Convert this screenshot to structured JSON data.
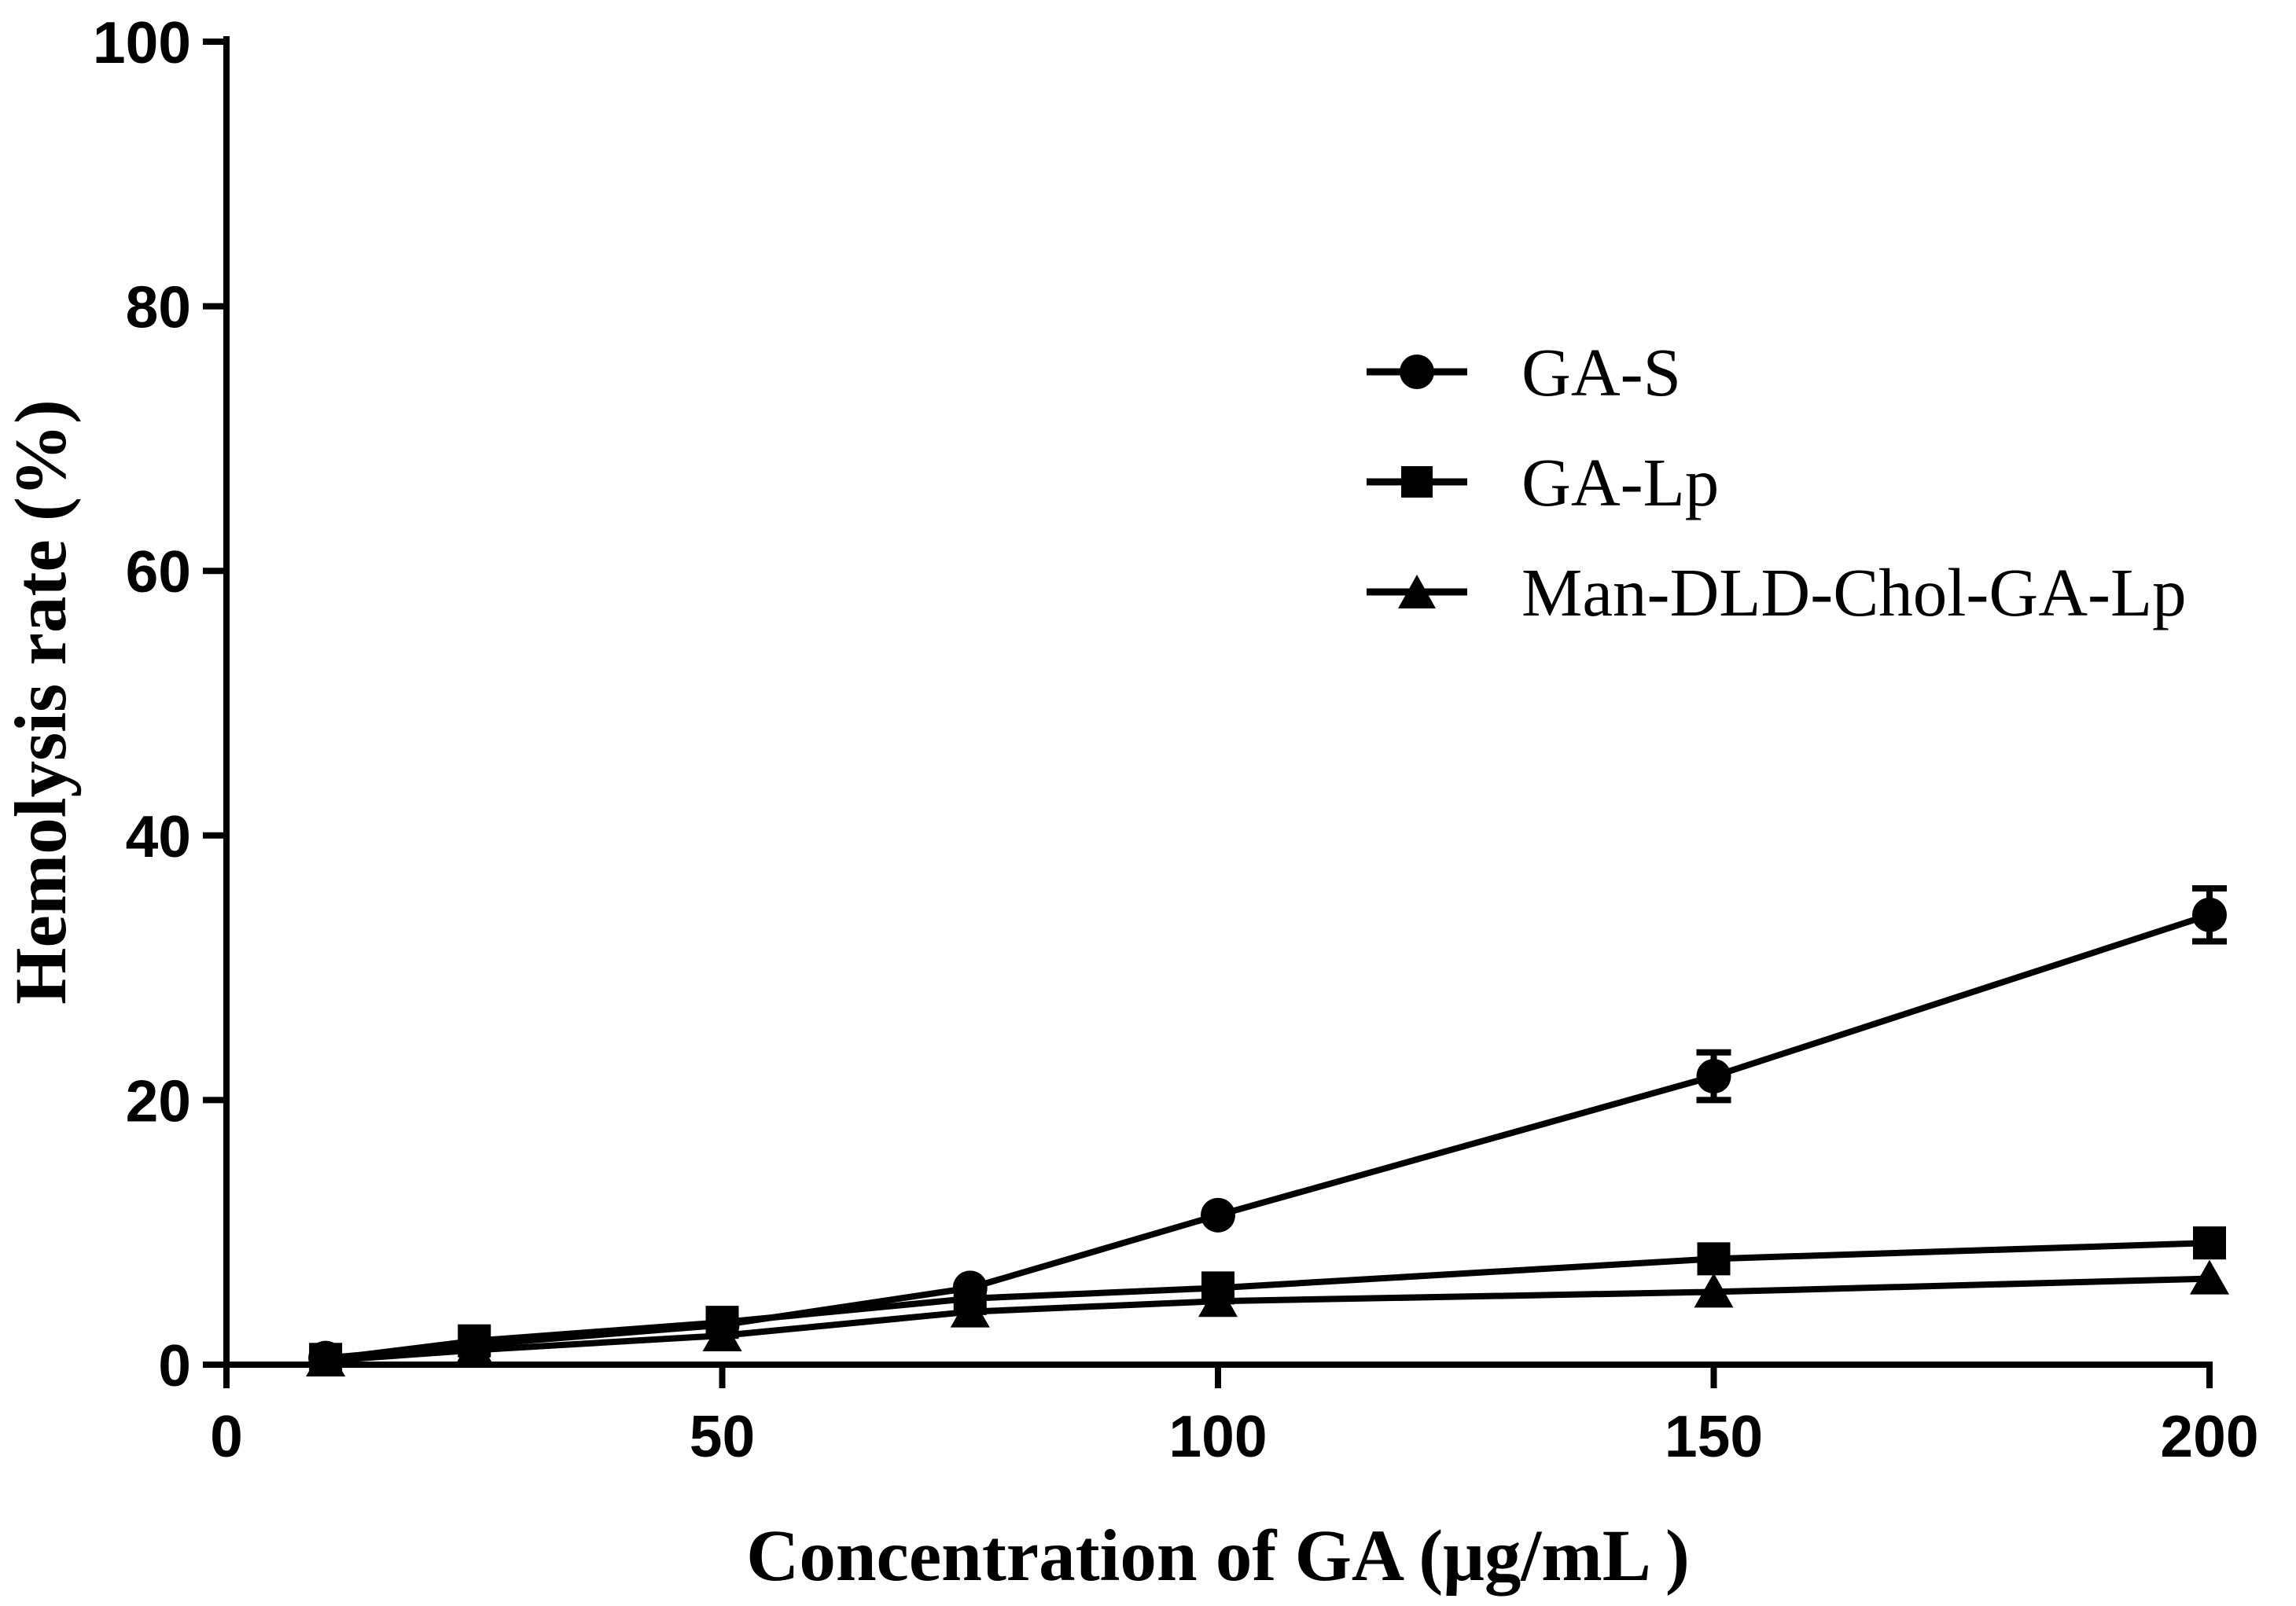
{
  "chart_data": {
    "type": "line",
    "title": "",
    "xlabel": "Concentration of GA (μg/mL )",
    "ylabel": "Hemolysis rate (%)",
    "xlim": [
      0,
      200
    ],
    "ylim": [
      0,
      100
    ],
    "xticks": [
      "0",
      "50",
      "100",
      "150",
      "200"
    ],
    "yticks": [
      "0",
      "20",
      "40",
      "60",
      "80",
      "100"
    ],
    "legend_position": "upper-right",
    "x": [
      10,
      25,
      50,
      75,
      100,
      150,
      200
    ],
    "series": [
      {
        "name": "GA-S",
        "marker": "circle",
        "values": [
          0.5,
          1.5,
          3.0,
          5.8,
          11.3,
          21.8,
          34.0
        ],
        "errors": [
          0.3,
          0.3,
          0.3,
          0.4,
          0.6,
          1.8,
          2.0
        ]
      },
      {
        "name": "GA-Lp",
        "marker": "square",
        "values": [
          0.4,
          1.8,
          3.2,
          5.0,
          5.8,
          8.0,
          9.2
        ],
        "errors": [
          0.3,
          0.3,
          0.3,
          0.3,
          0.4,
          0.5,
          0.5
        ]
      },
      {
        "name": "Man-DLD-Chol-GA-Lp",
        "marker": "triangle",
        "values": [
          0.3,
          1.1,
          2.2,
          4.0,
          4.8,
          5.5,
          6.5
        ],
        "errors": [
          0.3,
          0.3,
          0.3,
          0.3,
          0.3,
          0.4,
          0.4
        ]
      }
    ],
    "colors": {
      "line": "#000000",
      "background": "#ffffff"
    }
  }
}
